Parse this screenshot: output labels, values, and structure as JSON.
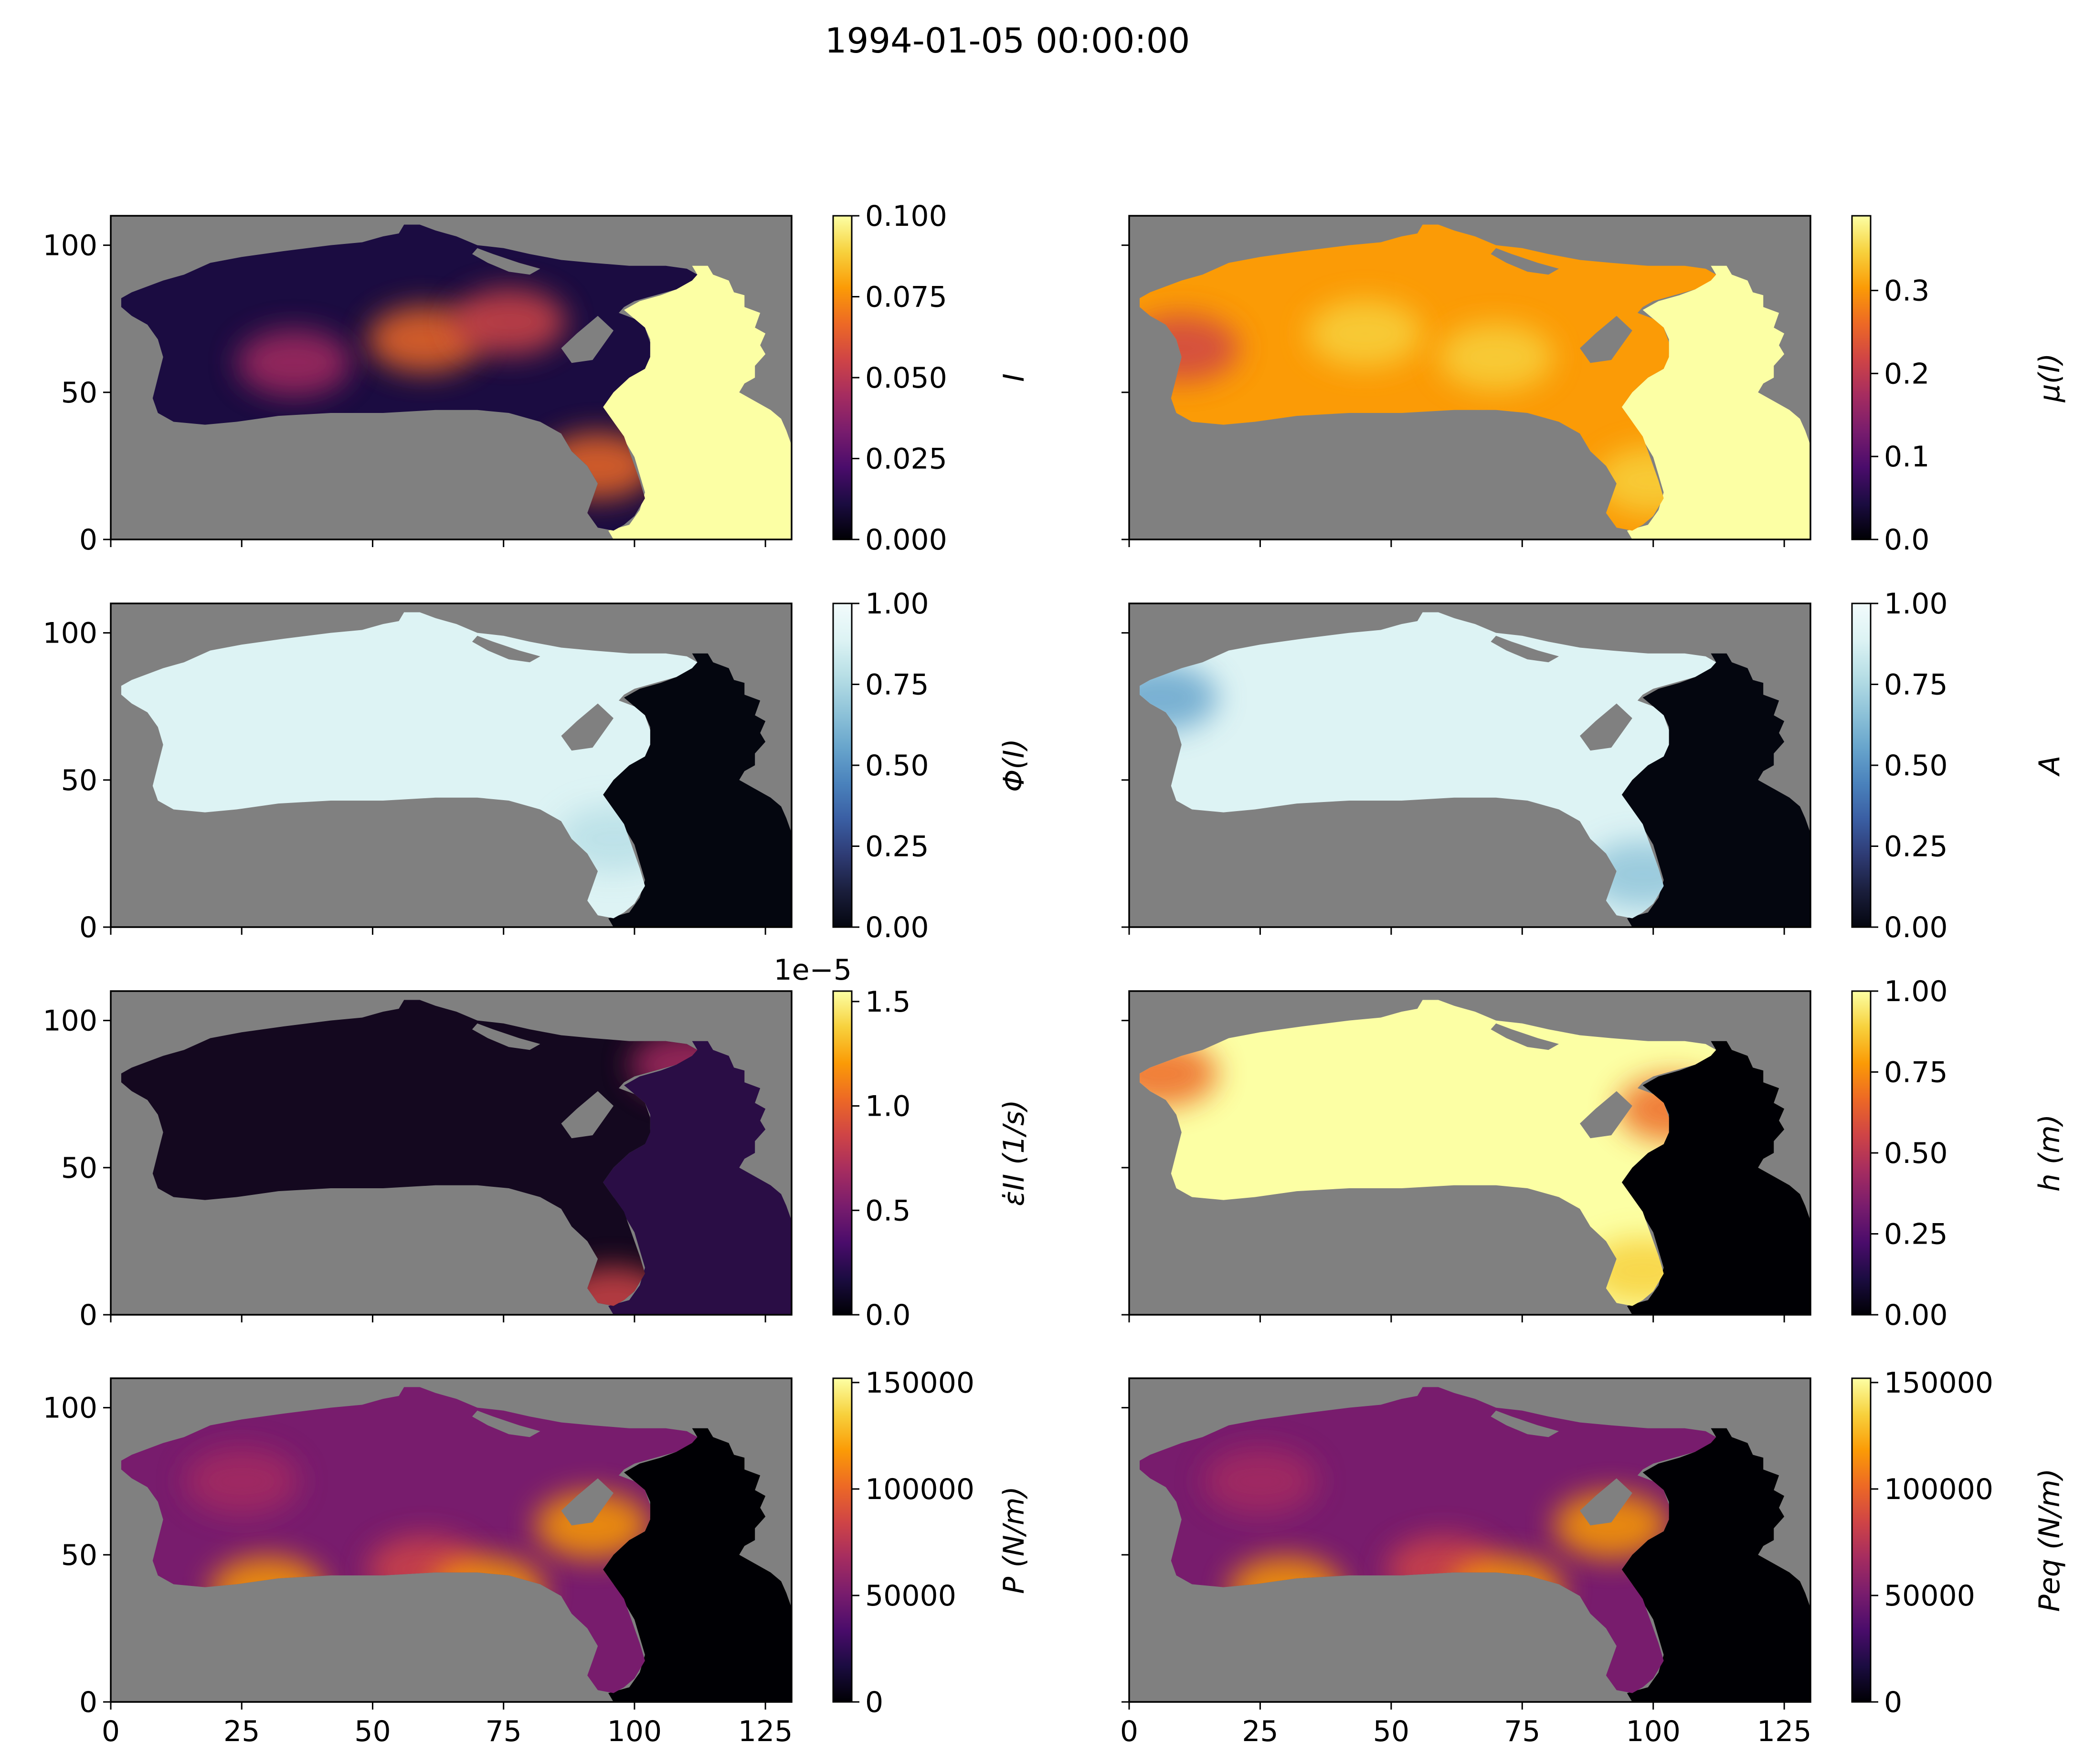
{
  "suptitle": "1994-01-05 00:00:00",
  "x_ticks": [
    0,
    25,
    50,
    75,
    100,
    125
  ],
  "y_ticks": [
    0,
    50,
    100
  ],
  "xlim": [
    0,
    130
  ],
  "ylim": [
    0,
    110
  ],
  "chart_data": [
    {
      "type": "heatmap",
      "cmap": "inferno",
      "field": "I",
      "colorbar_label": "I",
      "clim": [
        0.0,
        0.1
      ],
      "colorbar_ticks": [
        "0.000",
        "0.025",
        "0.050",
        "0.075",
        "0.100"
      ],
      "colorbar_offset": "",
      "open_water_value": "high"
    },
    {
      "type": "heatmap",
      "cmap": "inferno",
      "field": "mu",
      "colorbar_label": "μ(I)",
      "clim": [
        0.0,
        0.39
      ],
      "colorbar_ticks": [
        "0.0",
        "0.1",
        "0.2",
        "0.3"
      ],
      "colorbar_offset": "",
      "open_water_value": "high"
    },
    {
      "type": "heatmap",
      "cmap": "ice",
      "field": "phi",
      "colorbar_label": "Φ(I)",
      "clim": [
        0.0,
        1.0
      ],
      "colorbar_ticks": [
        "0.00",
        "0.25",
        "0.50",
        "0.75",
        "1.00"
      ],
      "colorbar_offset": "",
      "open_water_value": "low"
    },
    {
      "type": "heatmap",
      "cmap": "ice",
      "field": "A",
      "colorbar_label": "A",
      "clim": [
        0.0,
        1.0
      ],
      "colorbar_ticks": [
        "0.00",
        "0.25",
        "0.50",
        "0.75",
        "1.00"
      ],
      "colorbar_offset": "",
      "open_water_value": "low"
    },
    {
      "type": "heatmap",
      "cmap": "inferno",
      "field": "eps",
      "colorbar_label": "ε̇II (1/s)",
      "clim": [
        0.0,
        1.55
      ],
      "colorbar_ticks": [
        "0.0",
        "0.5",
        "1.0",
        "1.5"
      ],
      "colorbar_offset": "1e−5",
      "open_water_value": "low"
    },
    {
      "type": "heatmap",
      "cmap": "inferno",
      "field": "h",
      "colorbar_label": "h (m)",
      "clim": [
        0.0,
        1.0
      ],
      "colorbar_ticks": [
        "0.00",
        "0.25",
        "0.50",
        "0.75",
        "1.00"
      ],
      "colorbar_offset": "",
      "open_water_value": "low"
    },
    {
      "type": "heatmap",
      "cmap": "inferno",
      "field": "P",
      "colorbar_label": "P (N/m)",
      "clim": [
        0,
        152000
      ],
      "colorbar_ticks": [
        "0",
        "50000",
        "100000",
        "150000"
      ],
      "colorbar_offset": "",
      "open_water_value": "low"
    },
    {
      "type": "heatmap",
      "cmap": "inferno",
      "field": "Peq",
      "colorbar_label": "Peq (N/m)",
      "clim": [
        0,
        152000
      ],
      "colorbar_ticks": [
        "0",
        "50000",
        "100000",
        "150000"
      ],
      "colorbar_offset": "",
      "open_water_value": "low"
    }
  ]
}
